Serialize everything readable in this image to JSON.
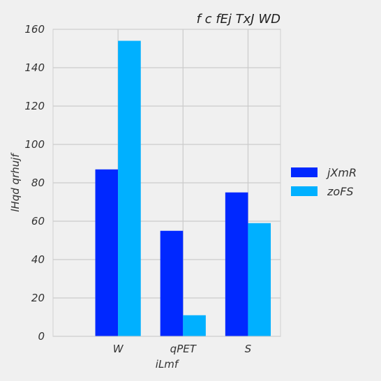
{
  "chart_data": {
    "type": "bar",
    "title": "f c fEj TxJ WD",
    "xlabel": "iLmf",
    "ylabel": "lHqd qrhujf",
    "categories": [
      "W",
      "qPET",
      "S"
    ],
    "series": [
      {
        "name": "jXmR",
        "color": "#0028ff",
        "values": [
          87,
          55,
          75
        ]
      },
      {
        "name": "zoFS",
        "color": "#00b0ff",
        "values": [
          154,
          11,
          59
        ]
      }
    ],
    "ylim": [
      0,
      160
    ],
    "yticks": [
      0,
      20,
      40,
      60,
      80,
      100,
      120,
      140,
      160
    ],
    "grid": true,
    "legend_position": "right"
  }
}
